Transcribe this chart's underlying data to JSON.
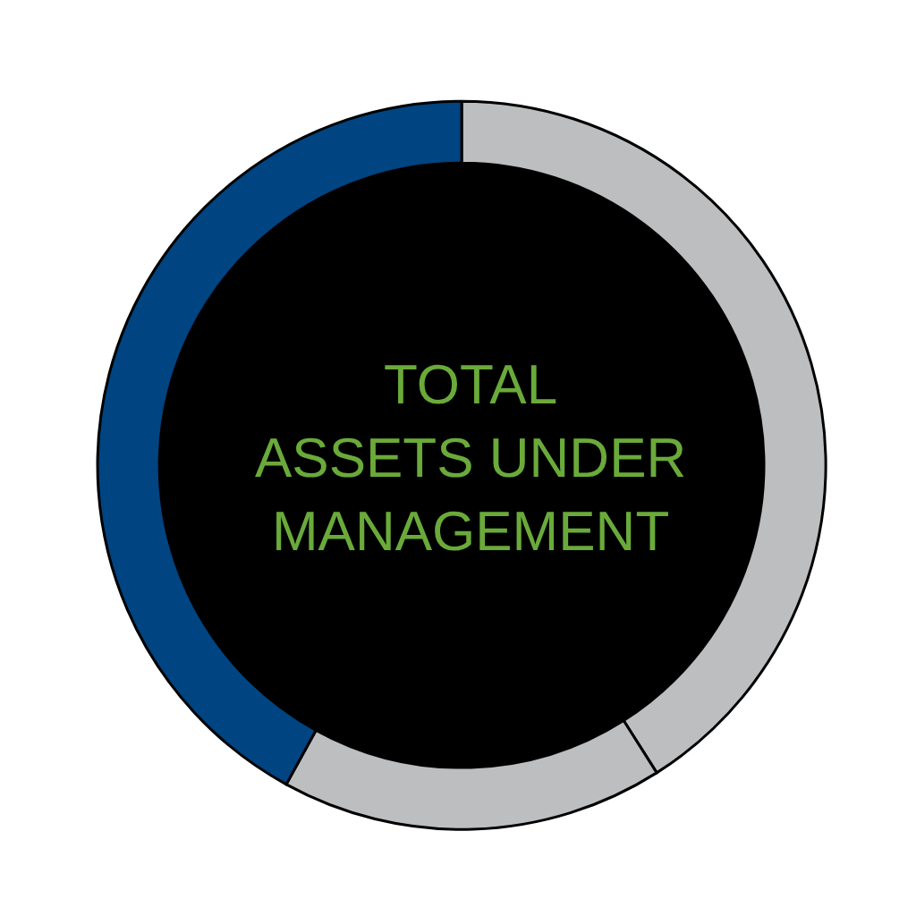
{
  "chart_data": {
    "type": "donut",
    "title": "TOTAL\nASSETS UNDER\nMANAGEMENT",
    "categories": [
      null,
      null,
      null
    ],
    "values": [
      41,
      17,
      42
    ],
    "colors": [
      "#bcbec0",
      "#bcbec0",
      "#004481"
    ]
  }
}
